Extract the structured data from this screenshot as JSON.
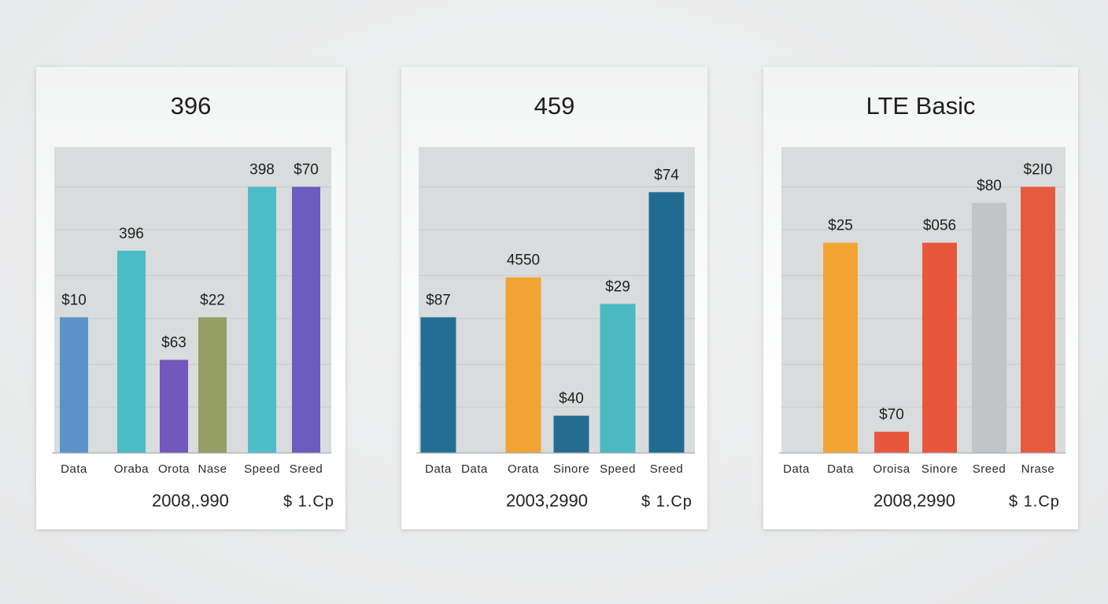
{
  "chart_data": [
    {
      "type": "bar",
      "title": "396",
      "categories": [
        "Data",
        "Oraba",
        "Orota",
        "Nase",
        "Speed",
        "Sreed"
      ],
      "values": [
        51,
        76,
        35,
        51,
        100,
        100
      ],
      "labels": [
        "$10",
        "396",
        "$63",
        "$22",
        "398",
        "$70"
      ],
      "colors": [
        "#5b93c8",
        "#4bbcc5",
        "#7257bd",
        "#959e64",
        "#4dbdc7",
        "#6c5cbe"
      ],
      "ylim": [
        0,
        100
      ],
      "footer_left": "2008,.990",
      "footer_right": "$ 1.Cp"
    },
    {
      "type": "bar",
      "title": "459",
      "categories": [
        "Data",
        "Data",
        "Orata",
        "Sinore",
        "Speed",
        "Sreed"
      ],
      "values": [
        51,
        0,
        66,
        14,
        56,
        98
      ],
      "labels": [
        "$87",
        "",
        "4550",
        "$40",
        "$29",
        "$74"
      ],
      "colors": [
        "#236f93",
        "#236f93",
        "#f1a433",
        "#246c8f",
        "#4ab9c2",
        "#216b90"
      ],
      "ylim": [
        0,
        100
      ],
      "footer_left": "2003,2990",
      "footer_right": "$ 1.Cp"
    },
    {
      "type": "bar",
      "title": "LTE Basic",
      "categories": [
        "Data",
        "Data",
        "Oroisa",
        "Sinore",
        "Sreed",
        "Nrase"
      ],
      "values": [
        0,
        79,
        8,
        79,
        94,
        100
      ],
      "labels": [
        "",
        "$25",
        "$70",
        "$056",
        "$80",
        "$2I0"
      ],
      "colors": [
        "#f3a534",
        "#f3a534",
        "#e8573c",
        "#e8573c",
        "#c2c5c8",
        "#e65a3e"
      ],
      "ylim": [
        0,
        100
      ],
      "footer_left": "2008,2990",
      "footer_right": "$ 1.Cp"
    }
  ]
}
